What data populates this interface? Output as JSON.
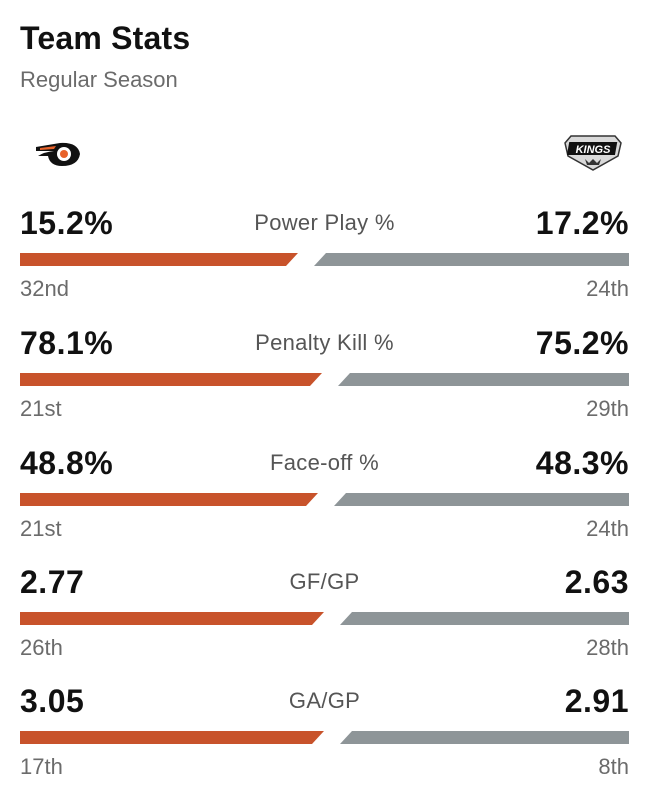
{
  "header": {
    "title": "Team Stats",
    "subtitle": "Regular Season"
  },
  "teams": {
    "home": {
      "logo": "flyers-logo",
      "color": "#c8532b"
    },
    "away": {
      "logo": "kings-logo",
      "color": "#8e9598",
      "logo_text": "KINGS"
    }
  },
  "stats": [
    {
      "label": "Power Play %",
      "home_value": "15.2%",
      "away_value": "17.2%",
      "home_rank": "32nd",
      "away_rank": "24th",
      "home_share": 0.469
    },
    {
      "label": "Penalty Kill %",
      "home_value": "78.1%",
      "away_value": "75.2%",
      "home_rank": "21st",
      "away_rank": "29th",
      "home_share": 0.509
    },
    {
      "label": "Face-off %",
      "home_value": "48.8%",
      "away_value": "48.3%",
      "home_rank": "21st",
      "away_rank": "24th",
      "home_share": 0.503
    },
    {
      "label": "GF/GP",
      "home_value": "2.77",
      "away_value": "2.63",
      "home_rank": "26th",
      "away_rank": "28th",
      "home_share": 0.513
    },
    {
      "label": "GA/GP",
      "home_value": "3.05",
      "away_value": "2.91",
      "home_rank": "17th",
      "away_rank": "8th",
      "home_share": 0.512
    }
  ]
}
